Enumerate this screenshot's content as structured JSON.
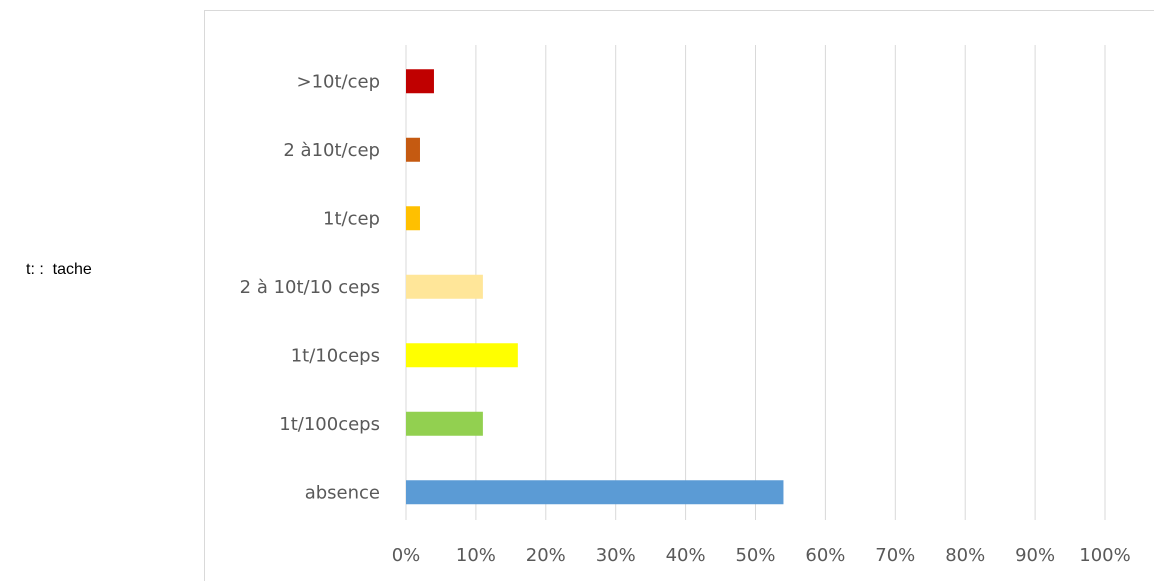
{
  "note": "t: :  tache",
  "chart_data": {
    "type": "bar",
    "orientation": "horizontal",
    "categories": [
      ">10t/cep",
      "2 à10t/cep",
      "1t/cep",
      "2 à 10t/10 ceps",
      "1t/10ceps",
      "1t/100ceps",
      "absence"
    ],
    "values": [
      4,
      2,
      2,
      11,
      16,
      11,
      54
    ],
    "colors": [
      "#c00000",
      "#c55a11",
      "#ffc000",
      "#ffe699",
      "#ffff00",
      "#92d050",
      "#5b9bd5"
    ],
    "xlim": [
      0,
      100
    ],
    "x_ticks": [
      "0%",
      "10%",
      "20%",
      "30%",
      "40%",
      "50%",
      "60%",
      "70%",
      "80%",
      "90%",
      "100%"
    ],
    "grid": true,
    "legend": false
  }
}
